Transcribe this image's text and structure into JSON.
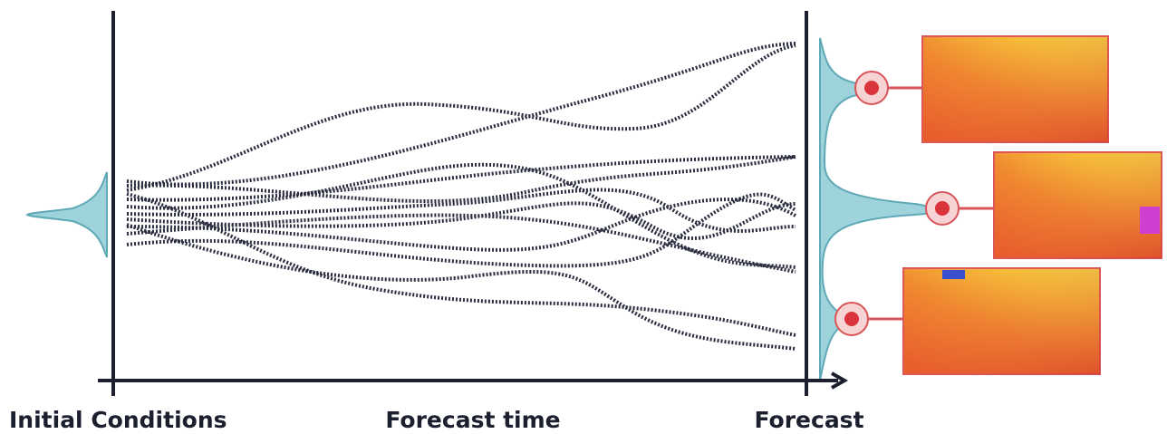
{
  "labels": {
    "initial": "Initial Conditions",
    "time": "Forecast time",
    "forecast": "Forecast"
  }
}
